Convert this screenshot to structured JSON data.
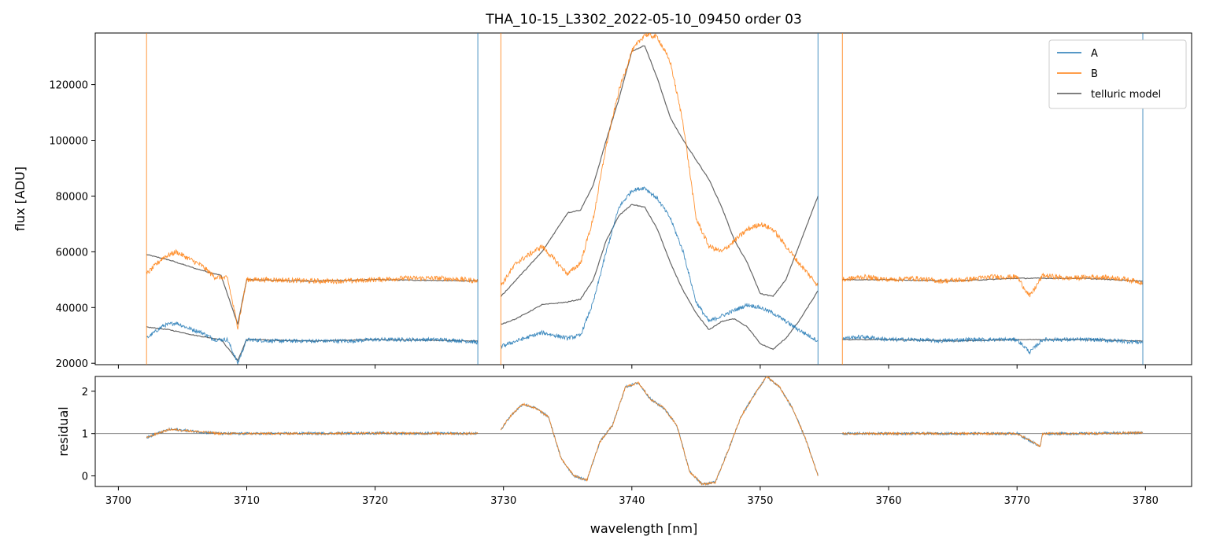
{
  "chart_data": {
    "type": "line",
    "title": "THA_10-15_L3302_2022-05-10_09450  order 03",
    "colors": {
      "A": "#1f77b4",
      "B": "#ff7f0e",
      "model": "#555555",
      "refline": "#777777"
    },
    "legend": {
      "placement": "top-right",
      "entries": [
        "A",
        "B",
        "telluric model"
      ]
    },
    "top_panel": {
      "ylabel": "flux [ADU]",
      "ylim": [
        19500,
        138500
      ],
      "xlim": [
        3698.2,
        3783.6
      ],
      "yticks": [
        20000,
        40000,
        60000,
        80000,
        100000,
        120000
      ],
      "segments": [
        {
          "name": "segment-1",
          "x_range": [
            3702.2,
            3728.0
          ],
          "series": [
            {
              "name": "B",
              "x": [
                3702.2,
                3703.5,
                3704.5,
                3705.5,
                3706.5,
                3707.5,
                3708.5,
                3709.3,
                3710,
                3712,
                3715,
                3718,
                3720,
                3722,
                3725,
                3727,
                3728.0
              ],
              "y": [
                52000,
                58000,
                60000,
                57500,
                55000,
                51000,
                50500,
                33000,
                50000,
                50000,
                49500,
                49500,
                50000,
                50500,
                50500,
                50000,
                49500
              ]
            },
            {
              "name": "A",
              "x": [
                3702.2,
                3703.5,
                3704.5,
                3705.5,
                3706.5,
                3707.5,
                3708.5,
                3709.3,
                3710,
                3712,
                3715,
                3718,
                3720,
                3722,
                3725,
                3727,
                3728.0
              ],
              "y": [
                29000,
                33500,
                34500,
                32500,
                31000,
                28500,
                28500,
                20000,
                28500,
                28000,
                28000,
                28000,
                28500,
                28500,
                28500,
                28000,
                27500
              ]
            },
            {
              "name": "telluric model",
              "x": [
                3702.2,
                3704,
                3706,
                3708,
                3709.3,
                3710,
                3715,
                3720,
                3728.0
              ],
              "y": [
                59000,
                57000,
                54000,
                51500,
                34000,
                50000,
                49500,
                50000,
                49500
              ]
            },
            {
              "name": "telluric model",
              "x": [
                3702.2,
                3704,
                3706,
                3708,
                3709.3,
                3710,
                3715,
                3720,
                3728.0
              ],
              "y": [
                33000,
                32000,
                30000,
                28500,
                21000,
                28500,
                28000,
                28500,
                28000
              ]
            }
          ]
        },
        {
          "name": "segment-2",
          "x_range": [
            3729.8,
            3754.5
          ],
          "series": [
            {
              "name": "B",
              "x": [
                3729.8,
                3731,
                3733,
                3735,
                3736,
                3737,
                3738,
                3739,
                3740,
                3741,
                3742,
                3743,
                3744,
                3745,
                3746,
                3747,
                3748,
                3749,
                3750,
                3751,
                3752,
                3753,
                3754.5
              ],
              "y": [
                48000,
                56000,
                62000,
                52000,
                56000,
                72000,
                98000,
                118000,
                132000,
                138000,
                137000,
                128000,
                106000,
                72000,
                62000,
                60000,
                64000,
                68000,
                70000,
                68000,
                62000,
                56000,
                48000
              ]
            },
            {
              "name": "A",
              "x": [
                3729.8,
                3731,
                3733,
                3735,
                3736,
                3737,
                3738,
                3739,
                3740,
                3741,
                3742,
                3743,
                3744,
                3745,
                3746,
                3747,
                3748,
                3749,
                3750,
                3751,
                3752,
                3753,
                3754.5
              ],
              "y": [
                26000,
                28000,
                31000,
                29000,
                30000,
                42000,
                60000,
                76000,
                82000,
                83000,
                79000,
                72000,
                60000,
                42000,
                35000,
                37000,
                39000,
                41000,
                40000,
                38000,
                35000,
                32000,
                28000
              ]
            },
            {
              "name": "telluric model",
              "x": [
                3729.8,
                3731,
                3733,
                3735,
                3736,
                3737,
                3738,
                3739,
                3740,
                3741,
                3742,
                3743,
                3744,
                3745,
                3746,
                3747,
                3748,
                3749,
                3750,
                3751,
                3752,
                3753,
                3754.5
              ],
              "y": [
                44000,
                50000,
                60000,
                74000,
                75000,
                84000,
                100000,
                115000,
                132000,
                134000,
                122000,
                108000,
                100000,
                93000,
                86000,
                76000,
                64000,
                56000,
                45000,
                44000,
                50000,
                62000,
                80000
              ]
            },
            {
              "name": "telluric model",
              "x": [
                3729.8,
                3731,
                3733,
                3735,
                3736,
                3737,
                3738,
                3739,
                3740,
                3741,
                3742,
                3743,
                3744,
                3745,
                3746,
                3747,
                3748,
                3749,
                3750,
                3751,
                3752,
                3753,
                3754.5
              ],
              "y": [
                34000,
                36000,
                41000,
                42000,
                43000,
                50000,
                64000,
                73000,
                77000,
                76000,
                68000,
                56000,
                46000,
                38000,
                32000,
                35000,
                36000,
                33000,
                27000,
                25000,
                29000,
                35000,
                46000
              ]
            }
          ]
        },
        {
          "name": "segment-3",
          "x_range": [
            3756.4,
            3779.8
          ],
          "series": [
            {
              "name": "B",
              "x": [
                3756.4,
                3758,
                3760,
                3762,
                3764,
                3766,
                3768,
                3770,
                3771,
                3772,
                3774,
                3776,
                3778,
                3779.8
              ],
              "y": [
                50000,
                51000,
                50000,
                50500,
                49500,
                50000,
                51000,
                51000,
                44000,
                51500,
                50500,
                51000,
                50500,
                49000
              ]
            },
            {
              "name": "A",
              "x": [
                3756.4,
                3758,
                3760,
                3762,
                3764,
                3766,
                3768,
                3770,
                3771,
                3772,
                3774,
                3776,
                3778,
                3779.8
              ],
              "y": [
                29000,
                29500,
                28500,
                28500,
                28000,
                28500,
                28500,
                28500,
                24000,
                28500,
                28500,
                28500,
                28000,
                27500
              ]
            },
            {
              "name": "telluric model",
              "x": [
                3756.4,
                3760,
                3765,
                3770,
                3775,
                3779.8
              ],
              "y": [
                50000,
                50000,
                49500,
                50500,
                50500,
                49500
              ]
            },
            {
              "name": "telluric model",
              "x": [
                3756.4,
                3760,
                3765,
                3770,
                3775,
                3779.8
              ],
              "y": [
                28500,
                28500,
                28000,
                28500,
                28500,
                28000
              ]
            }
          ]
        }
      ]
    },
    "bottom_panel": {
      "ylabel": "residual",
      "xlabel": "wavelength [nm]",
      "ylim": [
        -0.25,
        2.35
      ],
      "xlim": [
        3698.2,
        3783.6
      ],
      "yticks": [
        0,
        1,
        2
      ],
      "xticks": [
        3700,
        3710,
        3720,
        3730,
        3740,
        3750,
        3760,
        3770,
        3780
      ],
      "reference_line": 1,
      "segments": [
        {
          "x": [
            3702.2,
            3703,
            3704,
            3705,
            3706,
            3708,
            3712,
            3720,
            3728.0
          ],
          "y": [
            0.9,
            1.0,
            1.1,
            1.08,
            1.05,
            1.0,
            1.0,
            1.01,
            1.0
          ]
        },
        {
          "x": [
            3729.8,
            3730.5,
            3731.5,
            3732.5,
            3733.5,
            3734.5,
            3735.5,
            3736.5,
            3737.5,
            3738.5,
            3739.5,
            3740.5,
            3741.5,
            3742.5,
            3743.5,
            3744.5,
            3745.5,
            3746.5,
            3747.5,
            3748.5,
            3749.5,
            3750.5,
            3751.5,
            3752.5,
            3753.5,
            3754.5
          ],
          "y": [
            1.1,
            1.4,
            1.7,
            1.6,
            1.4,
            0.4,
            0.0,
            -0.1,
            0.8,
            1.2,
            2.1,
            2.2,
            1.8,
            1.6,
            1.2,
            0.1,
            -0.2,
            -0.15,
            0.6,
            1.4,
            1.9,
            2.35,
            2.1,
            1.6,
            0.9,
            0.0
          ]
        },
        {
          "x": [
            3756.4,
            3760,
            3765,
            3770,
            3771.8,
            3772,
            3775,
            3779.8
          ],
          "y": [
            1.0,
            1.0,
            1.0,
            1.0,
            0.7,
            1.0,
            1.0,
            1.02
          ]
        }
      ]
    }
  }
}
